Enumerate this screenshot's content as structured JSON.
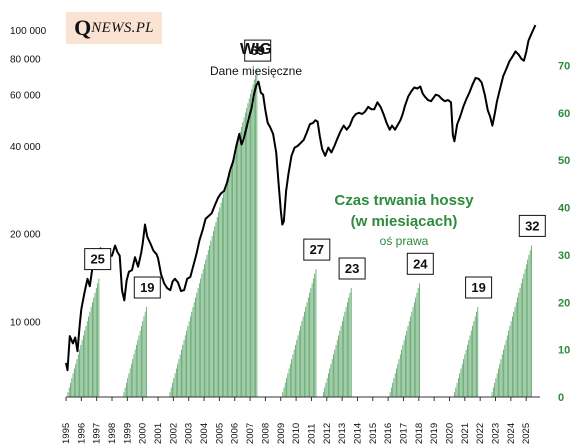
{
  "logo": {
    "q": "Q",
    "rest": "NEWS.PL"
  },
  "chart_data": {
    "type": "line",
    "title": "WIG",
    "subtitle": "Dane miesięczne",
    "right_axis_title": [
      "Czas trwania hossy",
      "(w miesiącach)"
    ],
    "right_axis_note": "oś prawa",
    "left_axis": {
      "scale": "log",
      "range": [
        5500,
        110000
      ],
      "tick_values": [
        10000,
        20000,
        40000,
        60000,
        80000,
        100000
      ],
      "tick_labels": [
        "10 000",
        "20 000",
        "40 000",
        "60 000",
        "80 000",
        "100 000"
      ]
    },
    "right_axis": {
      "scale": "linear",
      "range": [
        0,
        80
      ],
      "tick_values": [
        0,
        10,
        20,
        30,
        40,
        50,
        60,
        70
      ],
      "tick_labels": [
        "0",
        "10",
        "20",
        "30",
        "40",
        "50",
        "60",
        "70"
      ],
      "color": "#2e8b3e"
    },
    "x_axis": {
      "range": [
        1995,
        2025.9
      ],
      "tick_labels": [
        "1995",
        "1996",
        "1997",
        "1998",
        "1999",
        "2000",
        "2001",
        "2002",
        "2003",
        "2004",
        "2005",
        "2006",
        "2007",
        "2008",
        "2009",
        "2010",
        "2011",
        "2012",
        "2013",
        "2014",
        "2015",
        "2016",
        "2017",
        "2018",
        "2019",
        "2020",
        "2021",
        "2022",
        "2023",
        "2024",
        "2025"
      ]
    },
    "series": [
      {
        "kind": "line",
        "axis": "left",
        "color": "#000000",
        "points": [
          [
            1995.0,
            7200
          ],
          [
            1995.1,
            6800
          ],
          [
            1995.25,
            8900
          ],
          [
            1995.45,
            8400
          ],
          [
            1995.6,
            8800
          ],
          [
            1995.75,
            7900
          ],
          [
            1995.9,
            9800
          ],
          [
            1996.0,
            11000
          ],
          [
            1996.2,
            12500
          ],
          [
            1996.4,
            14000
          ],
          [
            1996.55,
            13200
          ],
          [
            1996.7,
            15000
          ],
          [
            1996.85,
            16500
          ],
          [
            1997.0,
            17200
          ],
          [
            1997.1,
            16000
          ],
          [
            1997.25,
            17800
          ],
          [
            1997.4,
            15800
          ],
          [
            1997.55,
            17000
          ],
          [
            1997.7,
            15500
          ],
          [
            1997.85,
            16800
          ],
          [
            1998.0,
            16800
          ],
          [
            1998.2,
            18200
          ],
          [
            1998.35,
            17300
          ],
          [
            1998.5,
            16800
          ],
          [
            1998.65,
            12800
          ],
          [
            1998.8,
            11800
          ],
          [
            1998.95,
            13800
          ],
          [
            1999.1,
            14800
          ],
          [
            1999.3,
            15000
          ],
          [
            1999.5,
            16600
          ],
          [
            1999.7,
            15400
          ],
          [
            1999.9,
            17200
          ],
          [
            2000.0,
            18500
          ],
          [
            2000.15,
            21500
          ],
          [
            2000.3,
            19500
          ],
          [
            2000.5,
            18500
          ],
          [
            2000.7,
            17500
          ],
          [
            2000.9,
            17000
          ],
          [
            2001.0,
            16500
          ],
          [
            2001.2,
            14500
          ],
          [
            2001.4,
            13500
          ],
          [
            2001.6,
            13000
          ],
          [
            2001.8,
            12800
          ],
          [
            2001.95,
            13700
          ],
          [
            2002.1,
            14000
          ],
          [
            2002.3,
            13600
          ],
          [
            2002.5,
            12700
          ],
          [
            2002.7,
            12800
          ],
          [
            2002.9,
            14000
          ],
          [
            2003.1,
            14200
          ],
          [
            2003.3,
            15500
          ],
          [
            2003.5,
            17000
          ],
          [
            2003.7,
            19000
          ],
          [
            2003.9,
            20500
          ],
          [
            2004.1,
            22500
          ],
          [
            2004.3,
            23000
          ],
          [
            2004.5,
            23500
          ],
          [
            2004.7,
            25000
          ],
          [
            2004.9,
            26500
          ],
          [
            2005.1,
            27500
          ],
          [
            2005.3,
            28000
          ],
          [
            2005.5,
            30000
          ],
          [
            2005.7,
            33000
          ],
          [
            2005.9,
            35500
          ],
          [
            2006.1,
            40000
          ],
          [
            2006.3,
            44000
          ],
          [
            2006.45,
            40500
          ],
          [
            2006.6,
            42500
          ],
          [
            2006.8,
            47000
          ],
          [
            2006.95,
            50500
          ],
          [
            2007.1,
            54000
          ],
          [
            2007.25,
            60000
          ],
          [
            2007.4,
            64500
          ],
          [
            2007.55,
            66500
          ],
          [
            2007.7,
            61000
          ],
          [
            2007.85,
            60000
          ],
          [
            2008.0,
            53000
          ],
          [
            2008.15,
            48000
          ],
          [
            2008.3,
            46500
          ],
          [
            2008.5,
            44000
          ],
          [
            2008.7,
            38000
          ],
          [
            2008.85,
            30000
          ],
          [
            2009.0,
            24000
          ],
          [
            2009.1,
            21500
          ],
          [
            2009.2,
            22000
          ],
          [
            2009.35,
            28000
          ],
          [
            2009.5,
            32000
          ],
          [
            2009.7,
            37000
          ],
          [
            2009.9,
            39500
          ],
          [
            2010.1,
            40000
          ],
          [
            2010.3,
            41000
          ],
          [
            2010.5,
            42000
          ],
          [
            2010.7,
            44500
          ],
          [
            2010.9,
            47500
          ],
          [
            2011.1,
            48000
          ],
          [
            2011.25,
            49000
          ],
          [
            2011.4,
            48500
          ],
          [
            2011.55,
            43000
          ],
          [
            2011.7,
            39000
          ],
          [
            2011.9,
            37000
          ],
          [
            2012.1,
            39500
          ],
          [
            2012.3,
            38000
          ],
          [
            2012.5,
            40000
          ],
          [
            2012.7,
            42500
          ],
          [
            2012.9,
            45000
          ],
          [
            2013.1,
            47000
          ],
          [
            2013.3,
            45500
          ],
          [
            2013.5,
            47000
          ],
          [
            2013.7,
            50000
          ],
          [
            2013.9,
            51500
          ],
          [
            2014.1,
            52000
          ],
          [
            2014.3,
            51500
          ],
          [
            2014.5,
            52500
          ],
          [
            2014.7,
            54500
          ],
          [
            2014.9,
            53500
          ],
          [
            2015.1,
            53500
          ],
          [
            2015.3,
            56500
          ],
          [
            2015.5,
            54500
          ],
          [
            2015.7,
            51500
          ],
          [
            2015.9,
            48000
          ],
          [
            2016.1,
            45500
          ],
          [
            2016.25,
            47000
          ],
          [
            2016.45,
            45500
          ],
          [
            2016.6,
            47000
          ],
          [
            2016.8,
            49000
          ],
          [
            2016.95,
            51500
          ],
          [
            2017.1,
            55000
          ],
          [
            2017.3,
            59000
          ],
          [
            2017.5,
            61500
          ],
          [
            2017.7,
            63500
          ],
          [
            2017.9,
            63000
          ],
          [
            2018.1,
            64000
          ],
          [
            2018.25,
            60500
          ],
          [
            2018.4,
            59000
          ],
          [
            2018.6,
            57500
          ],
          [
            2018.8,
            57000
          ],
          [
            2018.95,
            58500
          ],
          [
            2019.1,
            60000
          ],
          [
            2019.3,
            59500
          ],
          [
            2019.5,
            58000
          ],
          [
            2019.7,
            57000
          ],
          [
            2019.9,
            57500
          ],
          [
            2020.1,
            56500
          ],
          [
            2020.22,
            43500
          ],
          [
            2020.32,
            41500
          ],
          [
            2020.5,
            47500
          ],
          [
            2020.7,
            50500
          ],
          [
            2020.9,
            54500
          ],
          [
            2021.1,
            58000
          ],
          [
            2021.3,
            61000
          ],
          [
            2021.5,
            65000
          ],
          [
            2021.7,
            68500
          ],
          [
            2021.9,
            68000
          ],
          [
            2022.1,
            66000
          ],
          [
            2022.3,
            60000
          ],
          [
            2022.5,
            53000
          ],
          [
            2022.65,
            50500
          ],
          [
            2022.8,
            47000
          ],
          [
            2022.95,
            51500
          ],
          [
            2023.1,
            57000
          ],
          [
            2023.3,
            63000
          ],
          [
            2023.5,
            69500
          ],
          [
            2023.7,
            73500
          ],
          [
            2023.9,
            78000
          ],
          [
            2024.1,
            81000
          ],
          [
            2024.3,
            84500
          ],
          [
            2024.5,
            82500
          ],
          [
            2024.7,
            79500
          ],
          [
            2024.85,
            78500
          ],
          [
            2025.0,
            84000
          ],
          [
            2025.15,
            92000
          ],
          [
            2025.3,
            96000
          ],
          [
            2025.45,
            100000
          ],
          [
            2025.6,
            104000
          ]
        ]
      }
    ],
    "bull_markets": [
      {
        "label": "25",
        "months": 25,
        "start": 1995.1,
        "end": 1997.2
      },
      {
        "label": "19",
        "months": 19,
        "start": 1998.75,
        "end": 2000.3
      },
      {
        "label": "69",
        "months": 69,
        "start": 2001.75,
        "end": 2007.5
      },
      {
        "label": "27",
        "months": 27,
        "start": 2009.1,
        "end": 2011.35
      },
      {
        "label": "23",
        "months": 23,
        "start": 2011.75,
        "end": 2013.65
      },
      {
        "label": "24",
        "months": 24,
        "start": 2016.1,
        "end": 2018.1
      },
      {
        "label": "19",
        "months": 19,
        "start": 2020.3,
        "end": 2021.9
      },
      {
        "label": "32",
        "months": 32,
        "start": 2022.75,
        "end": 2025.4
      }
    ],
    "bar_color": "#2e8b3e"
  }
}
